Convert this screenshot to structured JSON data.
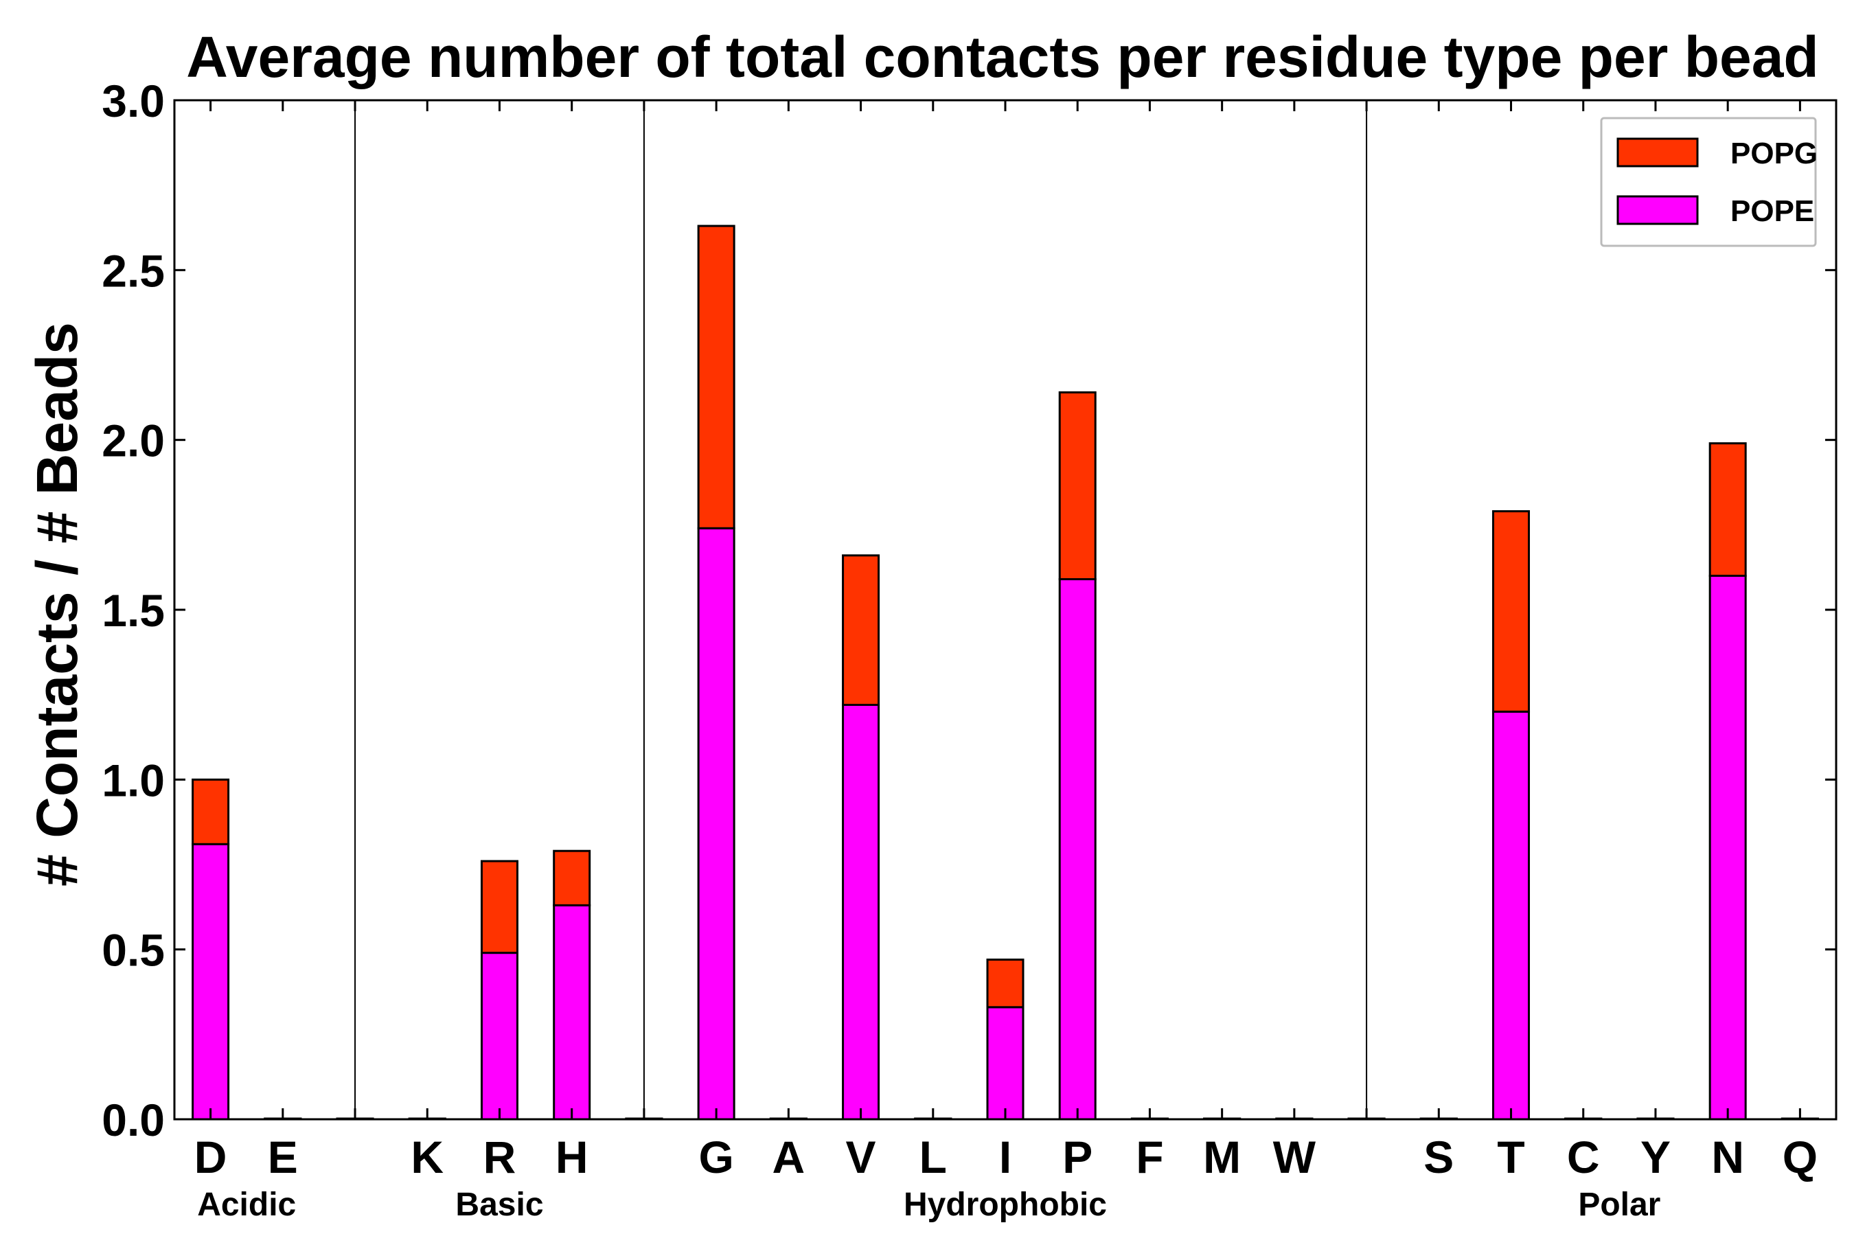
{
  "chart_data": {
    "type": "bar",
    "stacked": true,
    "title": "Average number of total contacts per residue type per bead",
    "xlabel": "",
    "ylabel": "# Contacts / # Beads",
    "ylim": [
      0,
      3.0
    ],
    "yticks": [
      "0.0",
      "0.5",
      "1.0",
      "1.5",
      "2.0",
      "2.5",
      "3.0"
    ],
    "grid": false,
    "legend_position": "top-right",
    "categories": [
      "D",
      "E",
      "",
      "K",
      "R",
      "H",
      "",
      "G",
      "A",
      "V",
      "L",
      "I",
      "P",
      "F",
      "M",
      "W",
      "",
      "S",
      "T",
      "C",
      "Y",
      "N",
      "Q"
    ],
    "groups": [
      {
        "label": "Acidic",
        "members": [
          "D",
          "E"
        ]
      },
      {
        "label": "Basic",
        "members": [
          "K",
          "R",
          "H"
        ]
      },
      {
        "label": "Hydrophobic",
        "members": [
          "G",
          "A",
          "V",
          "L",
          "I",
          "P",
          "F",
          "M",
          "W"
        ]
      },
      {
        "label": "Polar",
        "members": [
          "S",
          "T",
          "C",
          "Y",
          "N",
          "Q"
        ]
      }
    ],
    "series": [
      {
        "name": "POPE",
        "color": "#ff00ff",
        "values": [
          0.81,
          0,
          0,
          0,
          0.49,
          0.63,
          0,
          1.74,
          0,
          1.22,
          0,
          0.33,
          1.59,
          0,
          0,
          0,
          0,
          0,
          1.2,
          0,
          0,
          1.6,
          0
        ]
      },
      {
        "name": "POPG",
        "color": "#ff3300",
        "values": [
          0.19,
          0,
          0,
          0,
          0.27,
          0.16,
          0,
          0.89,
          0,
          0.44,
          0,
          0.14,
          0.55,
          0,
          0,
          0,
          0,
          0,
          0.59,
          0,
          0,
          0.39,
          0
        ]
      }
    ],
    "legend": [
      "POPG",
      "POPE"
    ]
  }
}
